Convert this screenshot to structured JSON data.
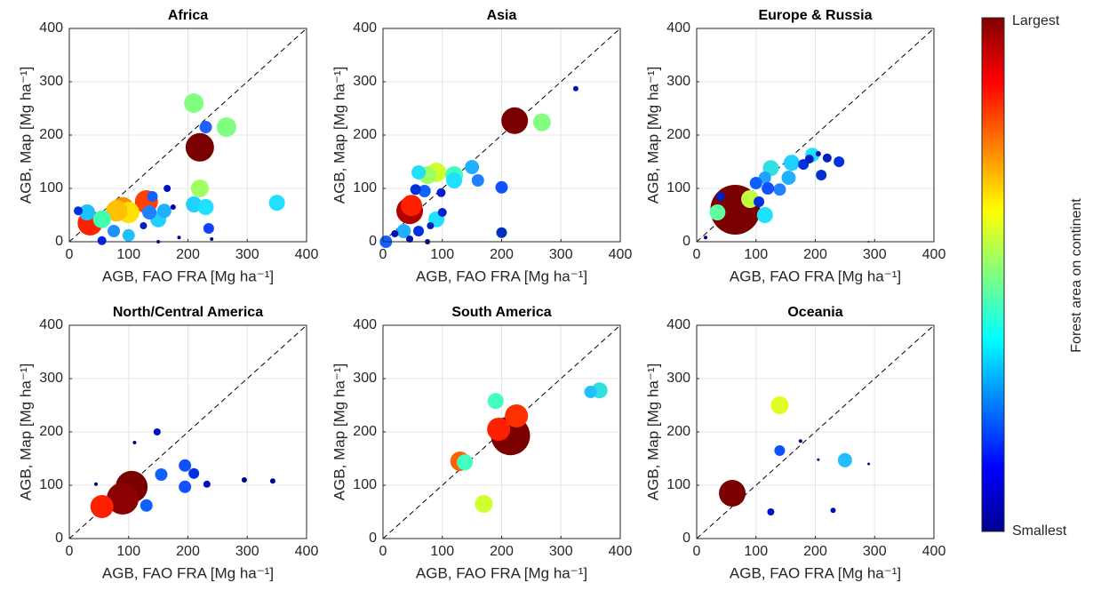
{
  "chart_data": [
    {
      "type": "scatter",
      "title": "Africa",
      "xlabel": "AGB, FAO FRA [Mg ha⁻¹]",
      "ylabel": "AGB, Map [Mg ha⁻¹]",
      "xlim": [
        0,
        400
      ],
      "ylim": [
        0,
        400
      ],
      "xticks": [
        0,
        100,
        200,
        300,
        400
      ],
      "yticks": [
        0,
        100,
        200,
        300,
        400
      ],
      "grid": true,
      "x": [
        220,
        35,
        130,
        90,
        100,
        80,
        30,
        55,
        210,
        265,
        220,
        350,
        210,
        230,
        150,
        160,
        135,
        100,
        75,
        230,
        235,
        55,
        15,
        165,
        175,
        140,
        125,
        185,
        150,
        240
      ],
      "y": [
        177,
        35,
        75,
        62,
        55,
        58,
        55,
        42,
        260,
        215,
        100,
        73,
        70,
        65,
        42,
        58,
        55,
        12,
        20,
        215,
        25,
        2,
        58,
        100,
        65,
        85,
        30,
        8,
        0,
        5
      ],
      "sizes": [
        16,
        14,
        13,
        13,
        12,
        12,
        9,
        10,
        11,
        11,
        10,
        9,
        9,
        9,
        9,
        8,
        8,
        7,
        7,
        7,
        6,
        5,
        5,
        4,
        3,
        6,
        4,
        2,
        2,
        2
      ],
      "colors": [
        "#7a0000",
        "#ff2000",
        "#ff4000",
        "#ff9000",
        "#ffe000",
        "#ffc000",
        "#20c0ff",
        "#40ffb0",
        "#80ff80",
        "#80ff80",
        "#a0ff60",
        "#20e0ff",
        "#20d0ff",
        "#20e0ff",
        "#20d0ff",
        "#20b0ff",
        "#2080ff",
        "#20c0ff",
        "#2090ff",
        "#2060ff",
        "#1040ff",
        "#0020ff",
        "#0030e0",
        "#0010c0",
        "#0000a0",
        "#1060ff",
        "#0020c0",
        "#000090",
        "#000080",
        "#000080"
      ]
    },
    {
      "type": "scatter",
      "title": "Asia",
      "xlabel": "AGB, FAO FRA [Mg ha⁻¹]",
      "ylabel": "AGB, Map [Mg ha⁻¹]",
      "xlim": [
        0,
        400
      ],
      "ylim": [
        0,
        400
      ],
      "xticks": [
        0,
        100,
        200,
        300,
        400
      ],
      "yticks": [
        0,
        100,
        200,
        300,
        400
      ],
      "grid": true,
      "x": [
        222,
        45,
        48,
        268,
        90,
        75,
        120,
        120,
        60,
        150,
        160,
        90,
        35,
        200,
        70,
        55,
        98,
        100,
        200,
        5,
        60,
        20,
        45,
        75,
        325,
        80
      ],
      "y": [
        227,
        58,
        68,
        224,
        130,
        125,
        125,
        115,
        130,
        140,
        115,
        42,
        20,
        102,
        95,
        98,
        92,
        55,
        17,
        0,
        20,
        15,
        5,
        0,
        287,
        30
      ],
      "sizes": [
        15,
        15,
        12,
        10,
        11,
        10,
        10,
        9,
        8,
        8,
        7,
        9,
        8,
        7,
        7,
        6,
        5,
        5,
        6,
        7,
        6,
        4,
        4,
        3,
        3,
        4
      ],
      "colors": [
        "#7a0000",
        "#b00000",
        "#ff2000",
        "#80ff80",
        "#d0ff30",
        "#a0ff60",
        "#40ffc0",
        "#20e0ff",
        "#20e0ff",
        "#20b0ff",
        "#2080ff",
        "#20e0ff",
        "#20b0ff",
        "#1050ff",
        "#1060ff",
        "#0030e0",
        "#0020d0",
        "#0020d0",
        "#0030c0",
        "#1060ff",
        "#0030e0",
        "#0010b0",
        "#0010b0",
        "#000090",
        "#0010c0",
        "#0020c0"
      ]
    },
    {
      "type": "scatter",
      "title": "Europe & Russia",
      "xlabel": "AGB, FAO FRA [Mg ha⁻¹]",
      "ylabel": "AGB, Map [Mg ha⁻¹]",
      "xlim": [
        0,
        400
      ],
      "ylim": [
        0,
        400
      ],
      "xticks": [
        0,
        100,
        200,
        300,
        400
      ],
      "yticks": [
        0,
        100,
        200,
        300,
        400
      ],
      "grid": true,
      "x": [
        65,
        90,
        35,
        115,
        195,
        160,
        125,
        155,
        140,
        115,
        100,
        180,
        210,
        220,
        240,
        190,
        105,
        120,
        40,
        15,
        205,
        290
      ],
      "y": [
        60,
        80,
        55,
        50,
        163,
        148,
        138,
        120,
        98,
        120,
        110,
        145,
        125,
        157,
        150,
        155,
        75,
        100,
        85,
        8,
        165,
        0
      ],
      "sizes": [
        28,
        10,
        9,
        9,
        8,
        9,
        9,
        8,
        7,
        7,
        7,
        6,
        6,
        5,
        6,
        5,
        6,
        7,
        5,
        2,
        3,
        1
      ],
      "colors": [
        "#7a0000",
        "#c0ff40",
        "#60ffa0",
        "#20e0ff",
        "#20e0ff",
        "#20d0ff",
        "#30e0e0",
        "#20b0ff",
        "#2080ff",
        "#20a0ff",
        "#1060ff",
        "#0030e0",
        "#0030d0",
        "#0020c0",
        "#0030e0",
        "#0020c0",
        "#0030e0",
        "#1050ff",
        "#0020c0",
        "#000090",
        "#0010b0",
        "#000080"
      ]
    },
    {
      "type": "scatter",
      "title": "North/Central America",
      "xlabel": "AGB, FAO FRA [Mg ha⁻¹]",
      "ylabel": "AGB, Map [Mg ha⁻¹]",
      "xlim": [
        0,
        400
      ],
      "ylim": [
        0,
        400
      ],
      "xticks": [
        0,
        100,
        200,
        300,
        400
      ],
      "yticks": [
        0,
        100,
        200,
        300,
        400
      ],
      "grid": true,
      "x": [
        105,
        90,
        55,
        155,
        195,
        195,
        210,
        130,
        148,
        232,
        295,
        343,
        45,
        110
      ],
      "y": [
        97,
        75,
        60,
        120,
        137,
        97,
        122,
        62,
        200,
        102,
        110,
        108,
        102,
        180
      ],
      "sizes": [
        18,
        18,
        13,
        7,
        7,
        7,
        6,
        7,
        4,
        4,
        3,
        3,
        2,
        2
      ],
      "colors": [
        "#7a0000",
        "#8b0000",
        "#ff2000",
        "#1060ff",
        "#1050ff",
        "#1050ff",
        "#0030e0",
        "#1060ff",
        "#0010c0",
        "#0010c0",
        "#000090",
        "#000090",
        "#000080",
        "#000080"
      ]
    },
    {
      "type": "scatter",
      "title": "South America",
      "xlabel": "AGB, FAO FRA [Mg ha⁻¹]",
      "ylabel": "AGB, Map [Mg ha⁻¹]",
      "xlim": [
        0,
        400
      ],
      "ylim": [
        0,
        400
      ],
      "xticks": [
        0,
        100,
        200,
        300,
        400
      ],
      "yticks": [
        0,
        100,
        200,
        300,
        400
      ],
      "grid": true,
      "x": [
        215,
        195,
        225,
        130,
        138,
        190,
        365,
        350,
        170
      ],
      "y": [
        193,
        205,
        230,
        145,
        143,
        258,
        278,
        275,
        65
      ],
      "sizes": [
        22,
        13,
        13,
        11,
        9,
        9,
        9,
        7,
        10
      ],
      "colors": [
        "#7a0000",
        "#ff2000",
        "#ff3000",
        "#ff6000",
        "#40ffc0",
        "#40ffc0",
        "#30e0e0",
        "#20c0ff",
        "#d0ff30"
      ]
    },
    {
      "type": "scatter",
      "title": "Oceania",
      "xlabel": "AGB, FAO FRA [Mg ha⁻¹]",
      "ylabel": "AGB, Map [Mg ha⁻¹]",
      "xlim": [
        0,
        400
      ],
      "ylim": [
        0,
        400
      ],
      "xticks": [
        0,
        100,
        200,
        300,
        400
      ],
      "yticks": [
        0,
        100,
        200,
        300,
        400
      ],
      "grid": true,
      "x": [
        60,
        140,
        250,
        140,
        125,
        230,
        175,
        205,
        290
      ],
      "y": [
        85,
        250,
        147,
        165,
        50,
        53,
        183,
        148,
        140
      ],
      "sizes": [
        15,
        10,
        8,
        6,
        4,
        3,
        2,
        1.5,
        1.5
      ],
      "colors": [
        "#7a0000",
        "#e0ff20",
        "#20c0ff",
        "#1050ff",
        "#0010c0",
        "#0010b0",
        "#000090",
        "#000080",
        "#000080"
      ]
    },
    {
      "type": "colorbar",
      "label": "Forest area on continent",
      "top_label": "Largest",
      "bottom_label": "Smallest",
      "colormap": "jet"
    }
  ]
}
